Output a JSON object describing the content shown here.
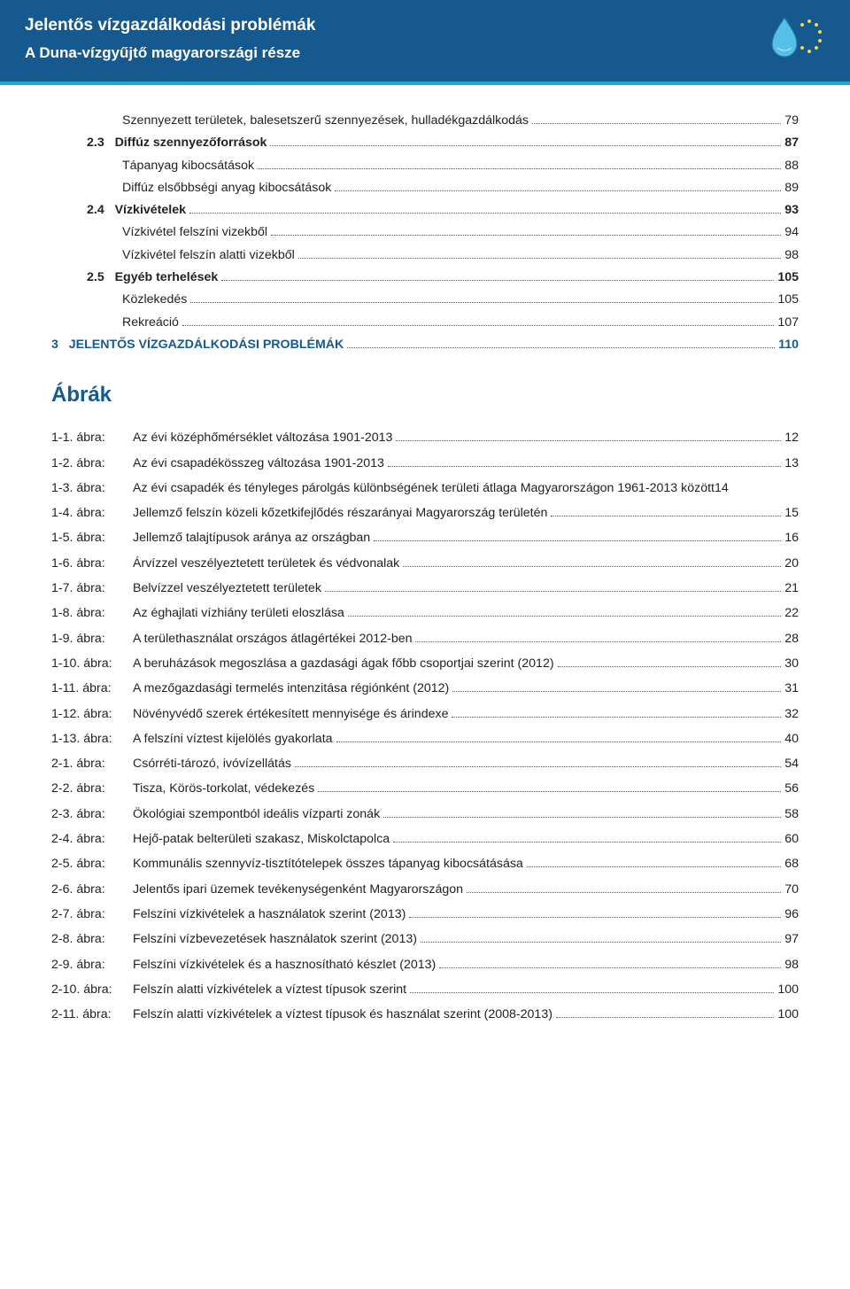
{
  "colors": {
    "header_bg": "#16598e",
    "accent_bar": "#1fa6d4",
    "text": "#222222",
    "page_bg": "#ffffff"
  },
  "header": {
    "title1": "Jelentős vízgazdálkodási problémák",
    "title2": "A Duna-vízgyűjtő magyarországi része"
  },
  "toc": [
    {
      "level": 2,
      "num": "",
      "text": "Szennyezett területek, balesetszerű szennyezések, hulladékgazdálkodás",
      "page": "79",
      "bold": false
    },
    {
      "level": 1,
      "num": "2.3",
      "text": "Diffúz szennyezőforrások",
      "page": "87",
      "bold": true
    },
    {
      "level": 2,
      "num": "",
      "text": "Tápanyag kibocsátások",
      "page": "88",
      "bold": false
    },
    {
      "level": 2,
      "num": "",
      "text": "Diffúz elsőbbségi anyag kibocsátások",
      "page": "89",
      "bold": false
    },
    {
      "level": 1,
      "num": "2.4",
      "text": "Vízkivételek",
      "page": "93",
      "bold": true
    },
    {
      "level": 2,
      "num": "",
      "text": "Vízkivétel felszíni vizekből",
      "page": "94",
      "bold": false
    },
    {
      "level": 2,
      "num": "",
      "text": "Vízkivétel felszín alatti vizekből",
      "page": "98",
      "bold": false
    },
    {
      "level": 1,
      "num": "2.5",
      "text": "Egyéb terhelések",
      "page": "105",
      "bold": true
    },
    {
      "level": 2,
      "num": "",
      "text": "Közlekedés",
      "page": "105",
      "bold": false
    },
    {
      "level": 2,
      "num": "",
      "text": "Rekreáció",
      "page": "107",
      "bold": false
    },
    {
      "level": 0,
      "num": "3",
      "text": "JELENTŐS VÍZGAZDÁLKODÁSI PROBLÉMÁK",
      "page": "110",
      "bold": true,
      "brand": true
    }
  ],
  "figures_heading": "Ábrák",
  "figures": [
    {
      "label": "1-1. ábra:",
      "text": "Az évi középhőmérséklet változása 1901-2013",
      "page": "12"
    },
    {
      "label": "1-2. ábra:",
      "text": "Az évi csapadékösszeg változása 1901-2013",
      "page": "13"
    },
    {
      "label": "1-3. ábra:",
      "text": "Az évi csapadék és tényleges párolgás különbségének területi átlaga Magyarországon 1961-2013 között",
      "page": "14",
      "noDots": true
    },
    {
      "label": "1-4. ábra:",
      "text": "Jellemző felszín közeli kőzetkifejlődés részarányai Magyarország területén",
      "page": "15"
    },
    {
      "label": "1-5. ábra:",
      "text": "Jellemző talajtípusok aránya az országban",
      "page": "16"
    },
    {
      "label": "1-6. ábra:",
      "text": "Árvízzel veszélyeztetett területek és védvonalak",
      "page": "20"
    },
    {
      "label": "1-7. ábra:",
      "text": "Belvízzel veszélyeztetett területek",
      "page": "21"
    },
    {
      "label": "1-8. ábra:",
      "text": "Az éghajlati vízhiány területi eloszlása",
      "page": "22"
    },
    {
      "label": "1-9. ábra:",
      "text": "A területhasználat országos átlagértékei 2012-ben",
      "page": "28"
    },
    {
      "label": "1-10. ábra:",
      "text": "A beruházások megoszlása a gazdasági ágak főbb csoportjai szerint (2012)",
      "page": "30"
    },
    {
      "label": "1-11. ábra:",
      "text": "A mezőgazdasági termelés intenzitása régiónként (2012)",
      "page": "31"
    },
    {
      "label": "1-12. ábra:",
      "text": "Növényvédő szerek értékesített mennyisége és árindexe",
      "page": "32"
    },
    {
      "label": "1-13. ábra:",
      "text": "A felszíni víztest kijelölés gyakorlata",
      "page": "40"
    },
    {
      "label": "2-1. ábra:",
      "text": "Csórréti-tározó, ivóvízellátás",
      "page": "54"
    },
    {
      "label": "2-2. ábra:",
      "text": "Tisza, Körös-torkolat, védekezés",
      "page": "56"
    },
    {
      "label": "2-3. ábra:",
      "text": "Ökológiai szempontból ideális vízparti zonák",
      "page": "58"
    },
    {
      "label": "2-4. ábra:",
      "text": "Hejő-patak belterületi szakasz, Miskolctapolca",
      "page": "60"
    },
    {
      "label": "2-5. ábra:",
      "text": "Kommunális szennyvíz-tisztítótelepek összes tápanyag kibocsátásása",
      "page": "68"
    },
    {
      "label": "2-6. ábra:",
      "text": "Jelentős ipari üzemek tevékenységenként Magyarországon",
      "page": "70"
    },
    {
      "label": "2-7. ábra:",
      "text": "Felszíni vízkivételek a használatok szerint (2013)",
      "page": "96"
    },
    {
      "label": "2-8. ábra:",
      "text": "Felszíni vízbevezetések használatok szerint (2013)",
      "page": "97"
    },
    {
      "label": "2-9. ábra:",
      "text": "Felszíni vízkivételek és a hasznosítható készlet (2013)",
      "page": "98"
    },
    {
      "label": "2-10. ábra:",
      "text": "Felszín alatti vízkivételek a víztest típusok szerint",
      "page": "100"
    },
    {
      "label": "2-11. ábra:",
      "text": "Felszín alatti vízkivételek a víztest típusok és használat szerint (2008-2013)",
      "page": "100"
    }
  ]
}
